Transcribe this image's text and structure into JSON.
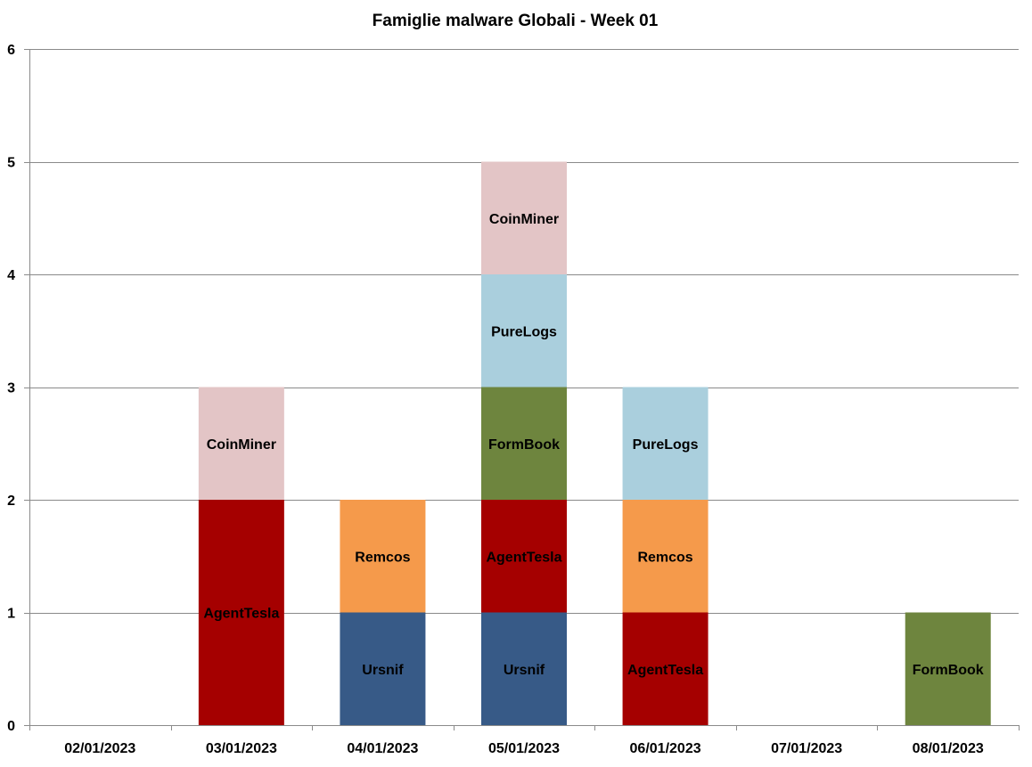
{
  "chart_data": {
    "type": "bar",
    "stacked": true,
    "title": "Famiglie  malware Globali - Week 01",
    "xlabel": "",
    "ylabel": "",
    "ylim": [
      0,
      6
    ],
    "yticks": [
      0,
      1,
      2,
      3,
      4,
      5,
      6
    ],
    "grid": true,
    "legend": "none",
    "categories": [
      "02/01/2023",
      "03/01/2023",
      "04/01/2023",
      "05/01/2023",
      "06/01/2023",
      "07/01/2023",
      "08/01/2023"
    ],
    "stacks": [
      [],
      [
        {
          "label": "AgentTesla",
          "value": 2,
          "color": "#a50000"
        },
        {
          "label": "CoinMiner",
          "value": 1,
          "color": "#e3c5c6"
        }
      ],
      [
        {
          "label": "Ursnif",
          "value": 1,
          "color": "#375a87"
        },
        {
          "label": "Remcos",
          "value": 1,
          "color": "#f59a4b"
        }
      ],
      [
        {
          "label": "Ursnif",
          "value": 1,
          "color": "#375a87"
        },
        {
          "label": "AgentTesla",
          "value": 1,
          "color": "#a50000"
        },
        {
          "label": "FormBook",
          "value": 1,
          "color": "#6e853e"
        },
        {
          "label": "PureLogs",
          "value": 1,
          "color": "#aacfdd"
        },
        {
          "label": "CoinMiner",
          "value": 1,
          "color": "#e3c5c6"
        }
      ],
      [
        {
          "label": "AgentTesla",
          "value": 1,
          "color": "#a50000"
        },
        {
          "label": "Remcos",
          "value": 1,
          "color": "#f59a4b"
        },
        {
          "label": "PureLogs",
          "value": 1,
          "color": "#aacfdd"
        }
      ],
      [],
      [
        {
          "label": "FormBook",
          "value": 1,
          "color": "#6e853e"
        }
      ]
    ]
  }
}
